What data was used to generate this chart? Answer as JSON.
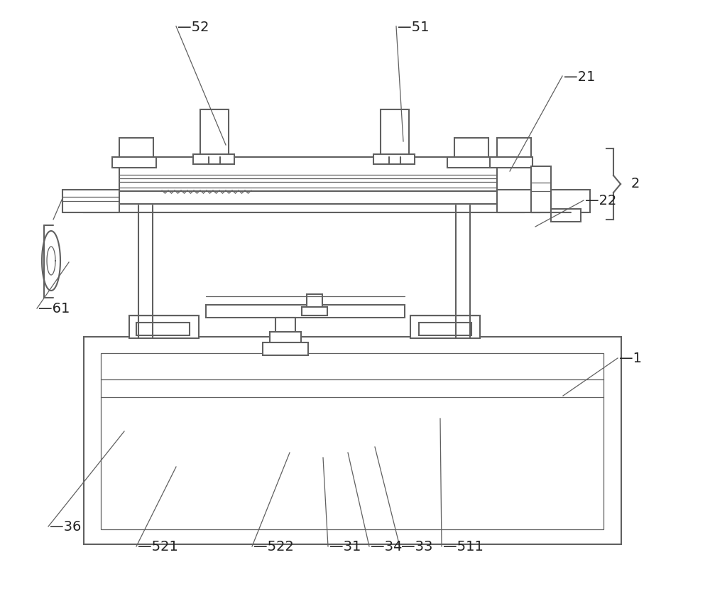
{
  "bg_color": "#ffffff",
  "lc": "#606060",
  "lw": 1.5,
  "tlw": 0.9,
  "fs": 14,
  "fc": "#222222",
  "annotations": [
    [
      "52",
      248,
      38,
      318,
      205
    ],
    [
      "51",
      558,
      38,
      568,
      200
    ],
    [
      "21",
      792,
      108,
      718,
      242
    ],
    [
      "22",
      822,
      283,
      754,
      320
    ],
    [
      "61",
      52,
      435,
      97,
      370
    ],
    [
      "1",
      870,
      505,
      793,
      558
    ],
    [
      "36",
      68,
      742,
      175,
      608
    ],
    [
      "521",
      192,
      770,
      248,
      658
    ],
    [
      "522",
      355,
      770,
      408,
      638
    ],
    [
      "31",
      462,
      770,
      455,
      645
    ],
    [
      "34",
      520,
      770,
      490,
      638
    ],
    [
      "33",
      563,
      770,
      528,
      630
    ],
    [
      "511",
      622,
      770,
      620,
      590
    ]
  ]
}
